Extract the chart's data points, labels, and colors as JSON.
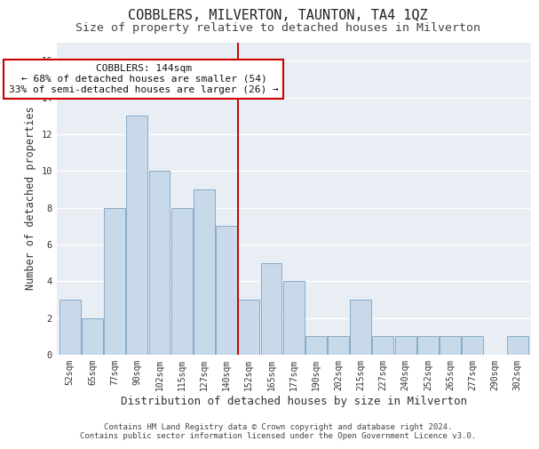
{
  "title": "COBBLERS, MILVERTON, TAUNTON, TA4 1QZ",
  "subtitle": "Size of property relative to detached houses in Milverton",
  "xlabel": "Distribution of detached houses by size in Milverton",
  "ylabel": "Number of detached properties",
  "bin_labels": [
    "52sqm",
    "65sqm",
    "77sqm",
    "90sqm",
    "102sqm",
    "115sqm",
    "127sqm",
    "140sqm",
    "152sqm",
    "165sqm",
    "177sqm",
    "190sqm",
    "202sqm",
    "215sqm",
    "227sqm",
    "240sqm",
    "252sqm",
    "265sqm",
    "277sqm",
    "290sqm",
    "302sqm"
  ],
  "bar_values": [
    3,
    2,
    8,
    13,
    10,
    8,
    9,
    7,
    3,
    5,
    4,
    1,
    1,
    3,
    1,
    1,
    1,
    1,
    1,
    0,
    1
  ],
  "bar_color": "#c8daea",
  "bar_edge_color": "#88aac8",
  "vline_color": "#cc0000",
  "annotation_text": "COBBLERS: 144sqm\n← 68% of detached houses are smaller (54)\n33% of semi-detached houses are larger (26) →",
  "annotation_box_facecolor": "#ffffff",
  "annotation_box_edgecolor": "#cc0000",
  "ylim": [
    0,
    17
  ],
  "yticks": [
    0,
    2,
    4,
    6,
    8,
    10,
    12,
    14,
    16
  ],
  "footer": "Contains HM Land Registry data © Crown copyright and database right 2024.\nContains public sector information licensed under the Open Government Licence v3.0.",
  "background_color": "#ffffff",
  "plot_bg_color": "#e8eef4",
  "grid_color": "#ffffff",
  "title_fontsize": 11,
  "subtitle_fontsize": 9.5,
  "tick_fontsize": 7,
  "ylabel_fontsize": 8.5,
  "xlabel_fontsize": 9,
  "annotation_fontsize": 8,
  "footer_fontsize": 6.5
}
